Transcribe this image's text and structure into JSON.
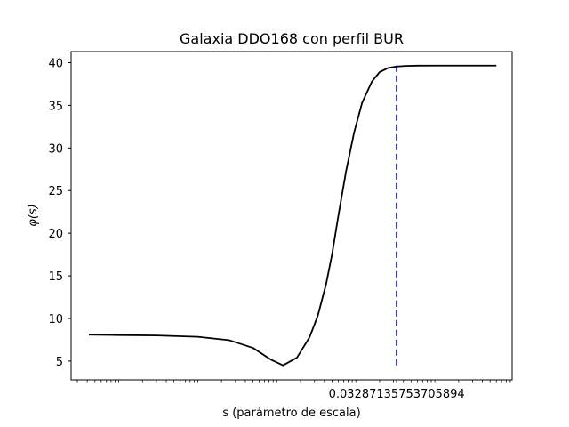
{
  "chart_data": {
    "type": "line",
    "title": "Galaxia DDO168 con perfil BUR",
    "xlabel": "s (parámetro de escala)",
    "ylabel": "φ(s)",
    "x_scale": "log",
    "xlim": [
      2.5e-06,
      0.95
    ],
    "ylim": [
      2.8,
      41.3
    ],
    "yticks": [
      5,
      10,
      15,
      20,
      25,
      30,
      35,
      40
    ],
    "xtick_labels": [
      "0.03287135753705894"
    ],
    "series": [
      {
        "color": "#000000",
        "style": "solid",
        "x": [
          4.2e-06,
          1e-05,
          3e-05,
          0.0001,
          0.00025,
          0.0005,
          0.00085,
          0.0012,
          0.0018,
          0.0026,
          0.0033,
          0.0042,
          0.005,
          0.006,
          0.0075,
          0.0095,
          0.012,
          0.016,
          0.02,
          0.026,
          0.033,
          0.043,
          0.06,
          0.1,
          0.3,
          0.6
        ],
        "y": [
          8.1,
          8.05,
          8.0,
          7.85,
          7.45,
          6.55,
          5.15,
          4.5,
          5.4,
          7.8,
          10.3,
          14.0,
          17.5,
          22.0,
          27.2,
          31.8,
          35.3,
          37.8,
          38.9,
          39.4,
          39.55,
          39.62,
          39.65,
          39.66,
          39.66,
          39.66
        ]
      }
    ],
    "vline": {
      "x": 0.03287135753705894,
      "y_from": 4.5,
      "y_to": 39.7,
      "color": "#0000aa",
      "style": "dashed"
    }
  }
}
